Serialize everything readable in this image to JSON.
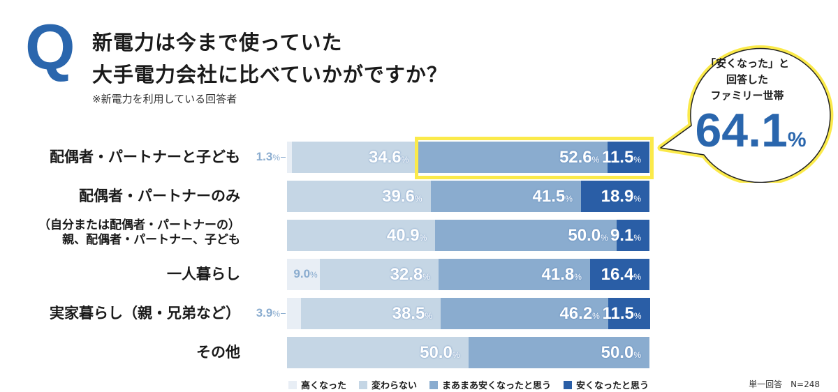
{
  "header": {
    "q": "Q",
    "title1": "新電力は今まで使っていた",
    "title2": "大手電力会社に比べていかがですか？",
    "note": "※新電力を利用している回答者"
  },
  "callout": {
    "line1": "「安くなった」と",
    "line2": "回答した",
    "line3": "ファミリー世帯",
    "value": "64.1",
    "unit": "%"
  },
  "chart_data": {
    "type": "bar",
    "orientation": "horizontal",
    "stacked": true,
    "xlim": [
      0,
      100
    ],
    "categories": [
      "配偶者・パートナーと子ども",
      "配偶者・パートナーのみ",
      "（自分または配偶者・パートナーの）\n親、配偶者・パートナー、子ども",
      "一人暮らし",
      "実家暮らし（親・兄弟など）",
      "その他"
    ],
    "category_lines": [
      [
        "配偶者・パートナーと子ども"
      ],
      [
        "配偶者・パートナーのみ"
      ],
      [
        "（自分または配偶者・パートナーの）",
        "親、配偶者・パートナー、子ども"
      ],
      [
        "一人暮らし"
      ],
      [
        "実家暮らし（親・兄弟など）"
      ],
      [
        "その他"
      ]
    ],
    "series": [
      {
        "name": "高くなった",
        "color": "#e8eef5",
        "values": [
          1.3,
          0,
          0,
          9.0,
          3.9,
          0
        ]
      },
      {
        "name": "変わらない",
        "color": "#c5d6e5",
        "values": [
          34.6,
          39.6,
          40.9,
          32.8,
          38.5,
          50.0
        ]
      },
      {
        "name": "まあまあ安くなったと思う",
        "color": "#8aaccf",
        "values": [
          52.6,
          41.5,
          50.0,
          41.8,
          46.2,
          50.0
        ]
      },
      {
        "name": "安くなったと思う",
        "color": "#2a5ea6",
        "values": [
          11.5,
          18.9,
          9.1,
          16.4,
          11.5,
          0
        ]
      }
    ],
    "unit": "%",
    "highlight_row": 0,
    "legend_position": "bottom"
  },
  "footnote": "単一回答　N=248"
}
